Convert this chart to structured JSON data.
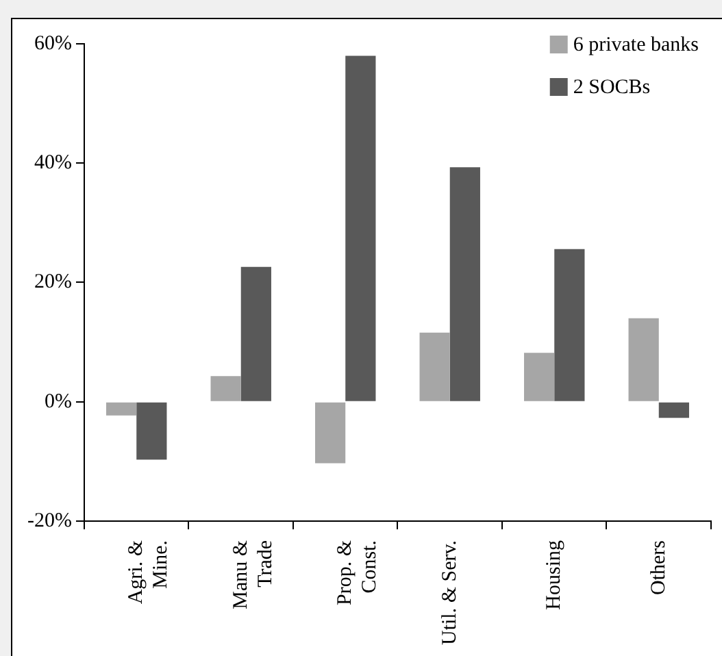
{
  "chart_data": {
    "type": "bar",
    "categories": [
      "Agri. &\nMine.",
      "Manu &\nTrade",
      "Prop. &\nConst.",
      "Util. & Serv.",
      "Housing",
      "Others"
    ],
    "series": [
      {
        "name": "6 private banks",
        "color": "#a6a6a6",
        "values": [
          -2.3,
          4.3,
          -10.3,
          11.6,
          8.2,
          14
        ]
      },
      {
        "name": "2 SOCBs",
        "color": "#595959",
        "values": [
          -9.7,
          22.6,
          58,
          39.3,
          25.6,
          -2.7
        ]
      }
    ],
    "ylim": [
      -20,
      60
    ],
    "yticks": [
      {
        "value": -20,
        "label": "-20%"
      },
      {
        "value": 0,
        "label": "0%"
      },
      {
        "value": 20,
        "label": "20%"
      },
      {
        "value": 40,
        "label": "40%"
      },
      {
        "value": 60,
        "label": "60%"
      }
    ],
    "grid": false,
    "legend": "top right"
  }
}
